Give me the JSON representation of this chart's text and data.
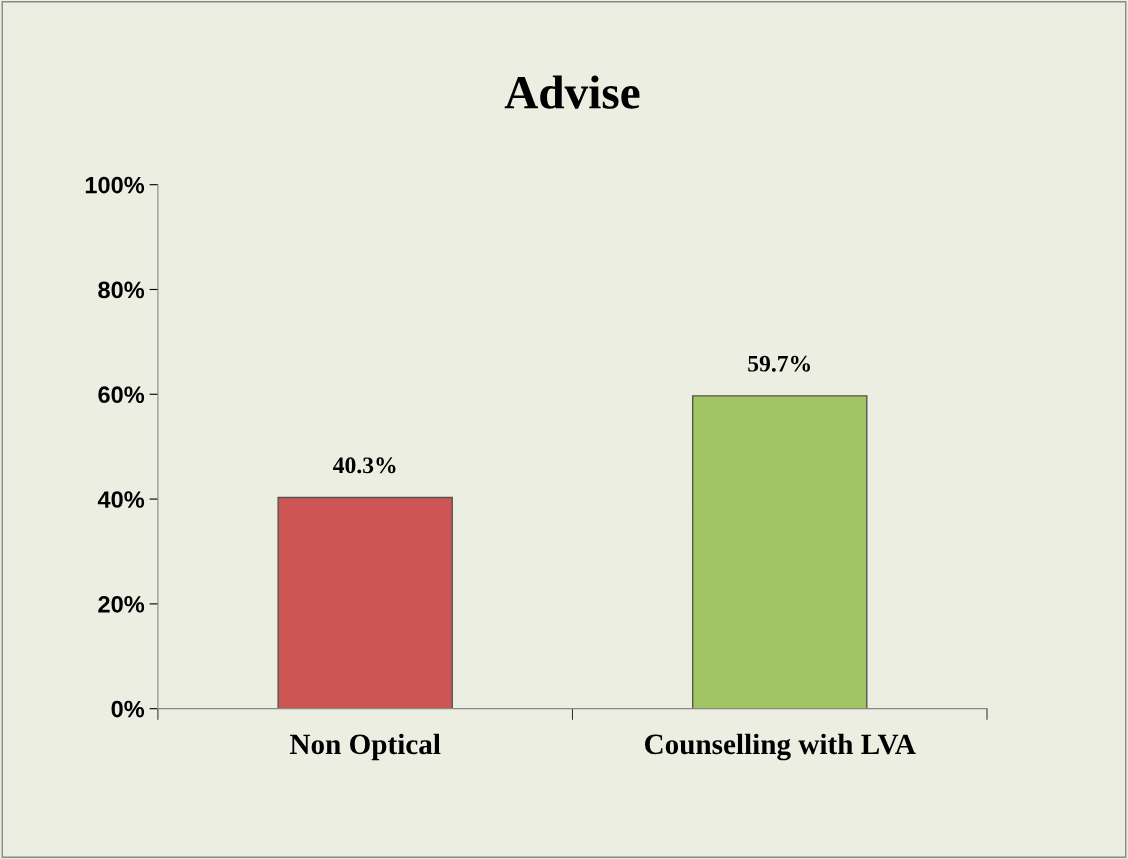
{
  "chart_data": {
    "type": "bar",
    "title": "Advise",
    "categories": [
      "Non Optical",
      "Counselling with LVA"
    ],
    "values": [
      40.3,
      59.7
    ],
    "colors": [
      "#cd5654",
      "#a3c462"
    ],
    "value_labels": [
      "40.3%",
      "59.7%"
    ],
    "ylim": [
      0,
      100
    ],
    "yticks": [
      {
        "value": 0,
        "label": "0%"
      },
      {
        "value": 20,
        "label": "20%"
      },
      {
        "value": 40,
        "label": "40%"
      },
      {
        "value": 60,
        "label": "60%"
      },
      {
        "value": 80,
        "label": "80%"
      },
      {
        "value": 100,
        "label": "100%"
      }
    ],
    "grid": false,
    "legend": false
  }
}
